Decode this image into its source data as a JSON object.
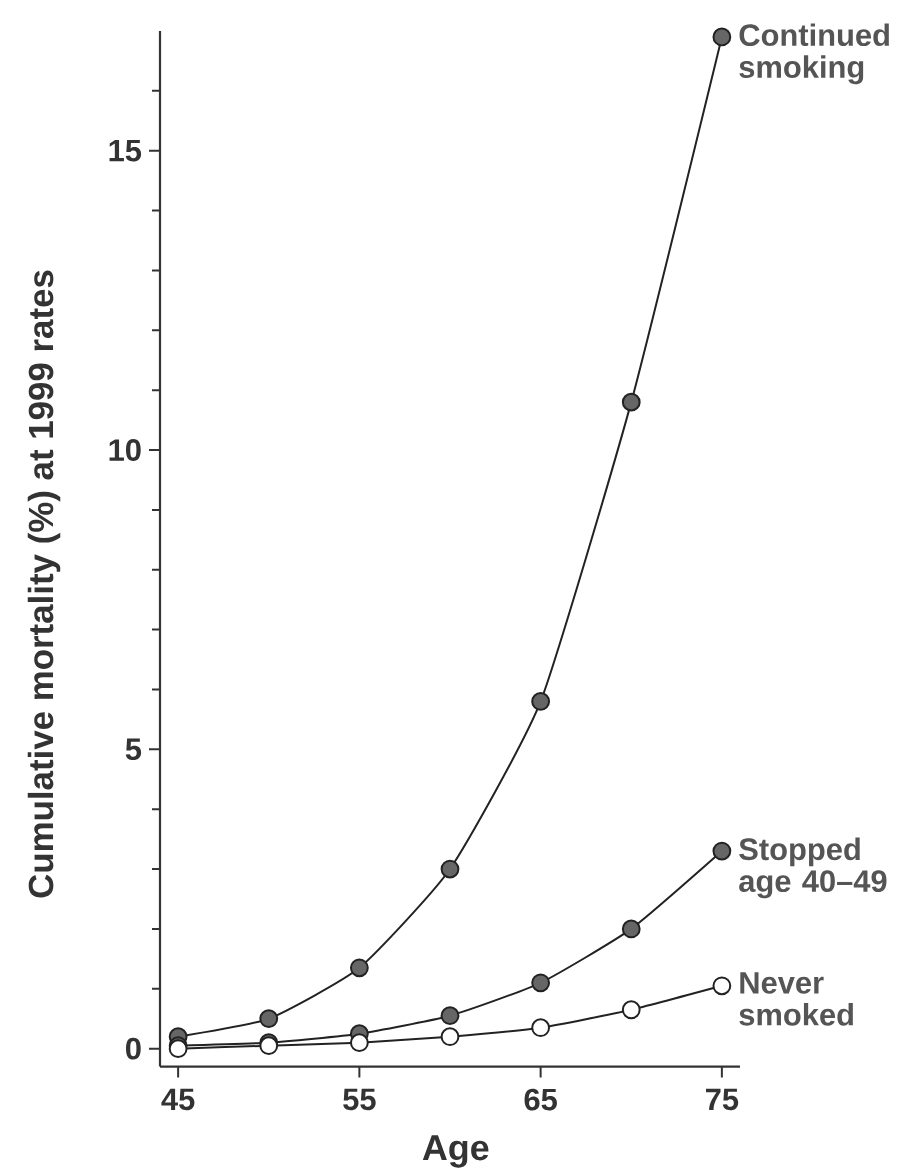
{
  "chart_data": {
    "type": "line",
    "xlabel": "Age",
    "ylabel": "Cumulative mortality (%) at 1999 rates",
    "marker": "circle",
    "x": [
      45,
      50,
      55,
      60,
      65,
      70,
      75
    ],
    "xlim": [
      44,
      76
    ],
    "ylim": [
      -0.3,
      17
    ],
    "xticks": [
      45,
      55,
      65,
      75
    ],
    "yticks": [
      0,
      {
        "value": 1,
        "label": null
      },
      {
        "value": 2,
        "label": null
      },
      {
        "value": 3,
        "label": null
      },
      {
        "value": 4,
        "label": null
      },
      5,
      {
        "value": 6,
        "label": null
      },
      {
        "value": 7,
        "label": null
      },
      {
        "value": 8,
        "label": null
      },
      {
        "value": 9,
        "label": null
      },
      10,
      {
        "value": 11,
        "label": null
      },
      {
        "value": 12,
        "label": null
      },
      {
        "value": 13,
        "label": null
      },
      {
        "value": 14,
        "label": null
      },
      15,
      {
        "value": 16,
        "label": null
      }
    ],
    "series": [
      {
        "name": "Continued smoking",
        "color": "#666666",
        "values": [
          0.2,
          0.5,
          1.35,
          3.0,
          5.8,
          10.8,
          16.9
        ]
      },
      {
        "name": "Stopped age 40–49",
        "color": "#666666",
        "values": [
          0.05,
          0.1,
          0.25,
          0.55,
          1.1,
          2.0,
          3.3
        ]
      },
      {
        "name": "Never smoked",
        "color": "#ffffff",
        "values": [
          0,
          0.05,
          0.1,
          0.2,
          0.35,
          0.65,
          1.05
        ]
      }
    ]
  }
}
